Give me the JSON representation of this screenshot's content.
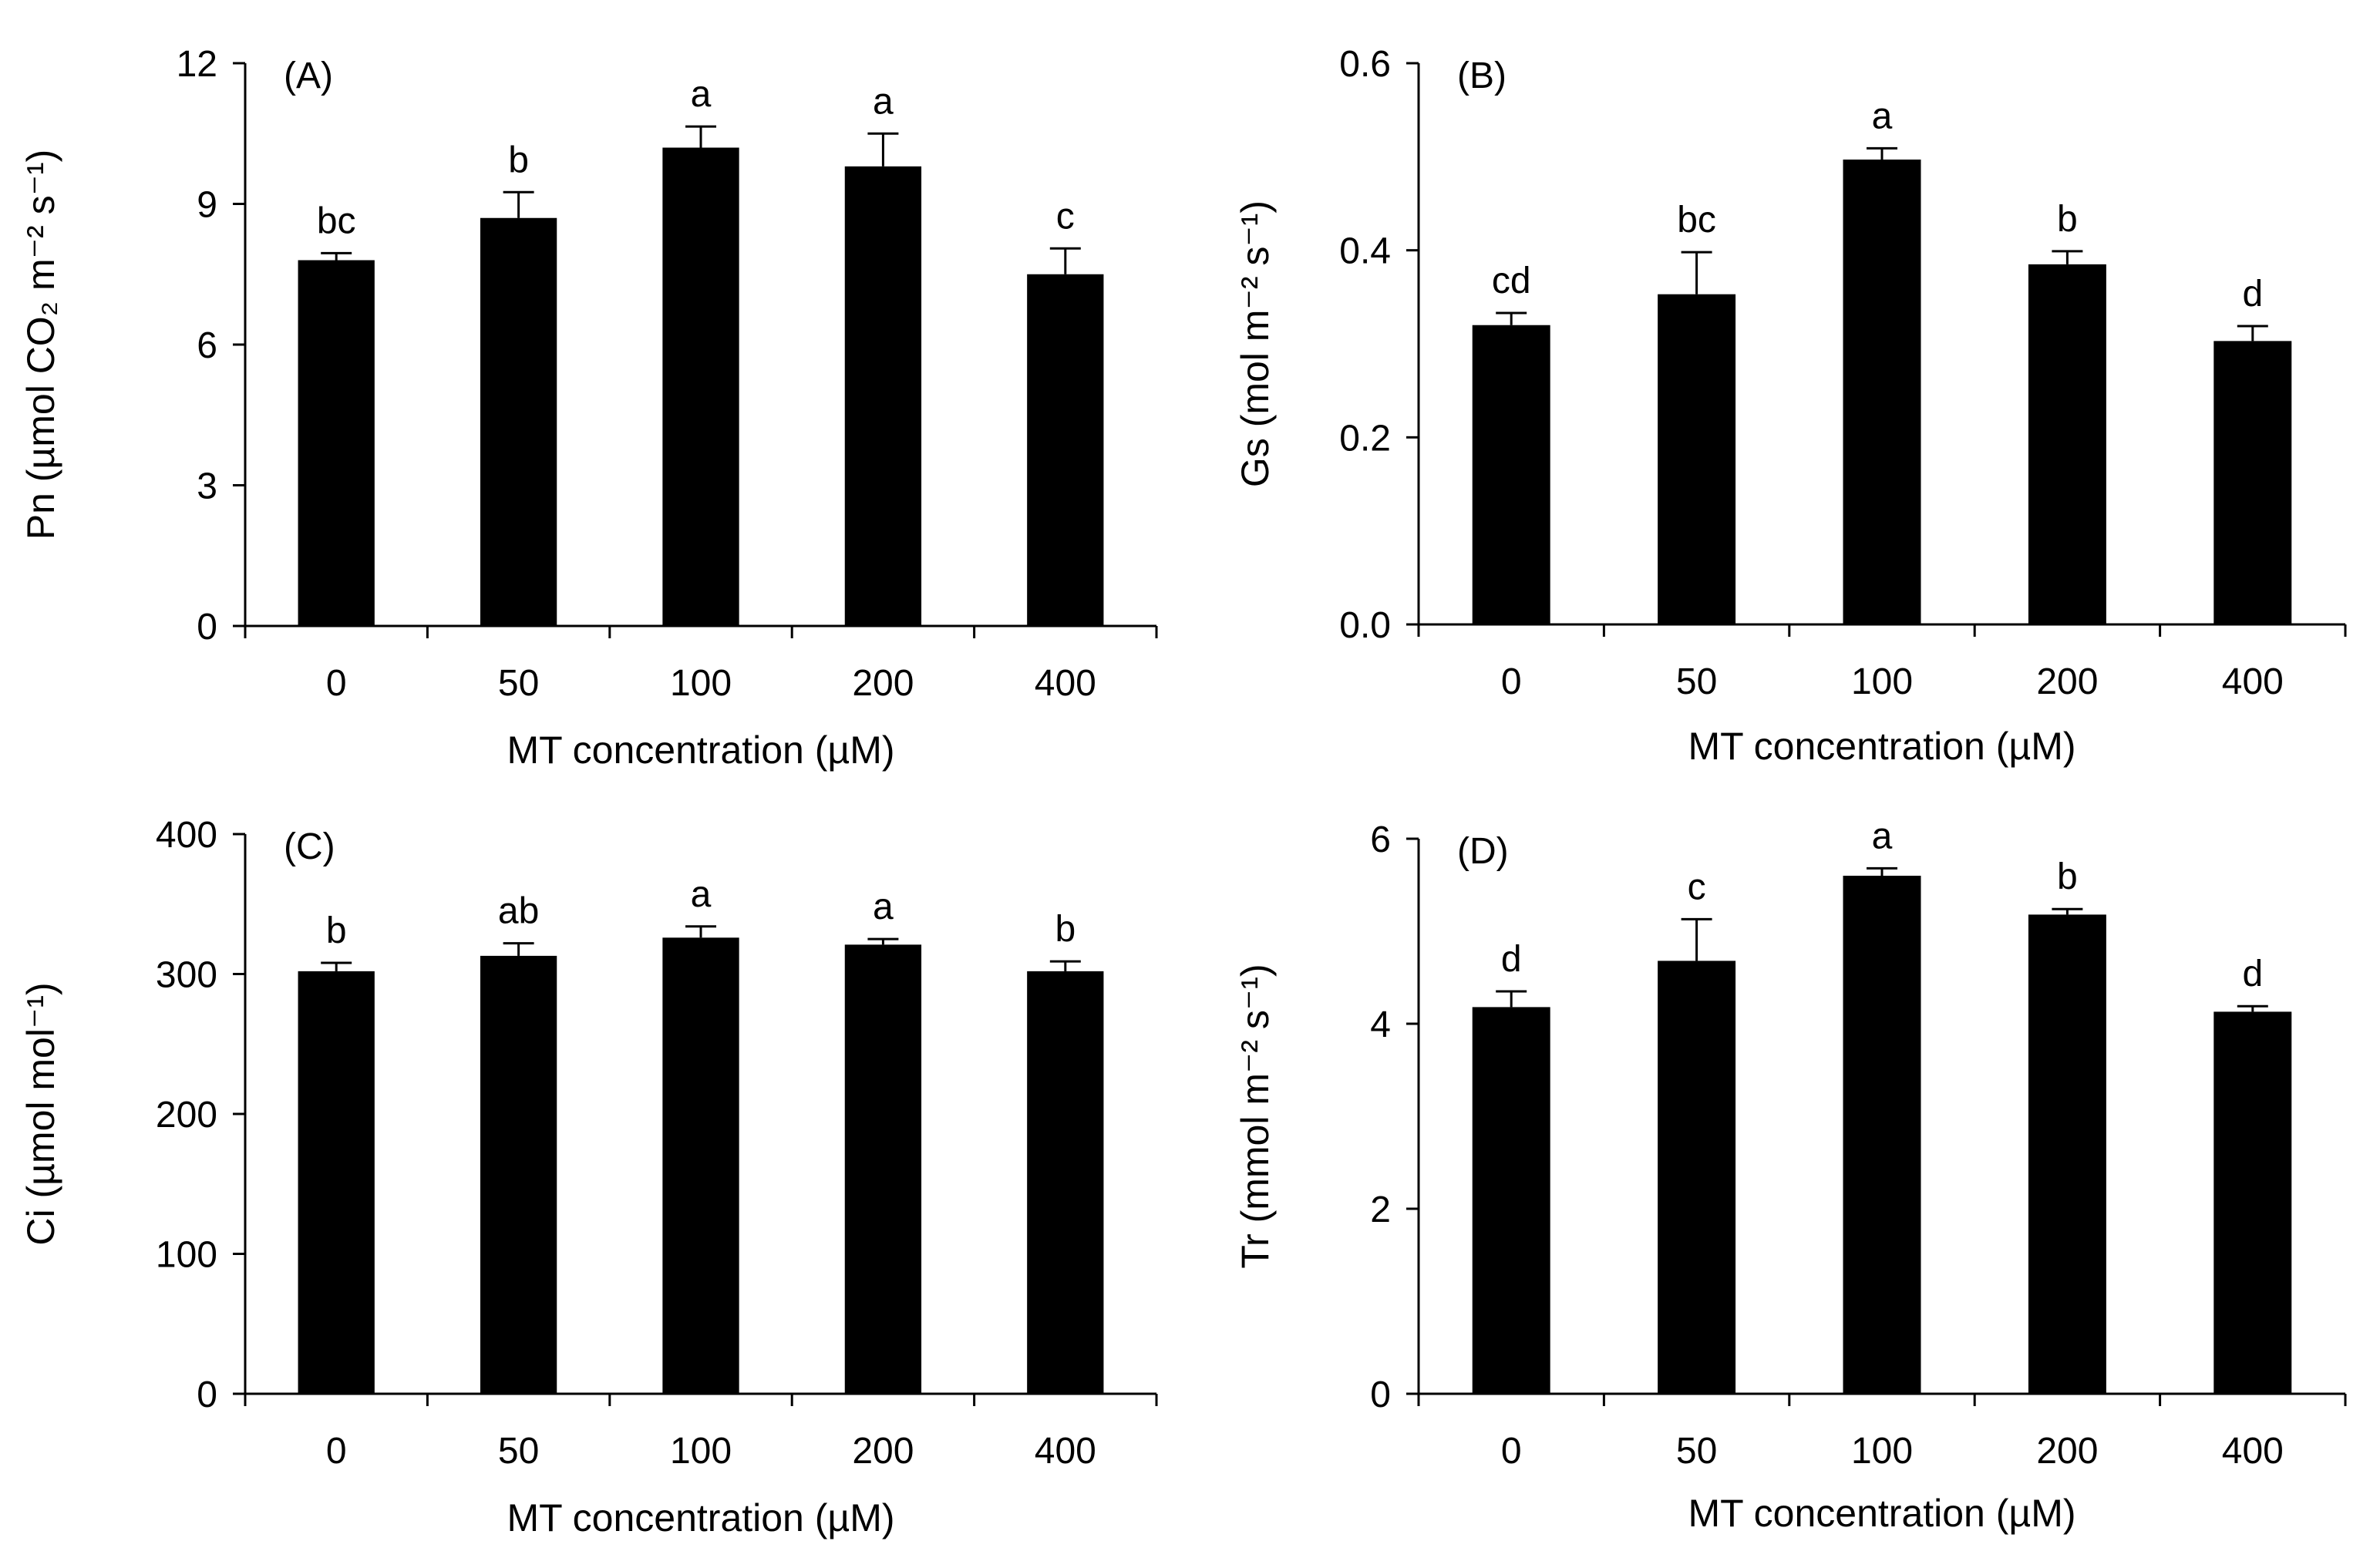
{
  "chart_data": [
    {
      "type": "bar",
      "panel": "(A)",
      "categories": [
        "0",
        "50",
        "100",
        "200",
        "400"
      ],
      "values": [
        7.8,
        8.7,
        10.2,
        9.8,
        7.5
      ],
      "errors": [
        0.15,
        0.55,
        0.45,
        0.7,
        0.55
      ],
      "significance": [
        "bc",
        "b",
        "a",
        "a",
        "c"
      ],
      "xlabel": "MT concentration (µM)",
      "ylabel": "Pn  (µmol CO₂ m⁻² s⁻¹)",
      "ylim": [
        0,
        12
      ],
      "yticks": [
        0,
        3,
        6,
        9,
        12
      ],
      "ytick_labels": [
        "0",
        "3",
        "6",
        "9",
        "12"
      ],
      "bar_color": "#000000"
    },
    {
      "type": "bar",
      "panel": "(B)",
      "categories": [
        "0",
        "50",
        "100",
        "200",
        "400"
      ],
      "values": [
        0.32,
        0.353,
        0.497,
        0.385,
        0.303
      ],
      "errors": [
        0.013,
        0.045,
        0.012,
        0.014,
        0.016
      ],
      "significance": [
        "cd",
        "bc",
        "a",
        "b",
        "d"
      ],
      "xlabel": "MT concentration (µM)",
      "ylabel": "Gs (mol m⁻² s⁻¹)",
      "ylim": [
        0,
        0.6
      ],
      "yticks": [
        0,
        0.2,
        0.4,
        0.6
      ],
      "ytick_labels": [
        "0.0",
        "0.2",
        "0.4",
        "0.6"
      ],
      "bar_color": "#000000"
    },
    {
      "type": "bar",
      "panel": "(C)",
      "categories": [
        "0",
        "50",
        "100",
        "200",
        "400"
      ],
      "values": [
        302,
        313,
        326,
        321,
        302
      ],
      "errors": [
        6,
        9,
        8,
        4,
        7
      ],
      "significance": [
        "b",
        "ab",
        "a",
        "a",
        "b"
      ],
      "xlabel": "MT concentration (µM)",
      "ylabel": "Ci  (µmol mol⁻¹)",
      "ylim": [
        0,
        400
      ],
      "yticks": [
        0,
        100,
        200,
        300,
        400
      ],
      "ytick_labels": [
        "0",
        "100",
        "200",
        "300",
        "400"
      ],
      "bar_color": "#000000"
    },
    {
      "type": "bar",
      "panel": "(D)",
      "categories": [
        "0",
        "50",
        "100",
        "200",
        "400"
      ],
      "values": [
        4.18,
        4.68,
        5.6,
        5.18,
        4.13
      ],
      "errors": [
        0.17,
        0.45,
        0.08,
        0.06,
        0.06
      ],
      "significance": [
        "d",
        "c",
        "a",
        "b",
        "d"
      ],
      "xlabel": "MT concentration (µM)",
      "ylabel": "Tr (mmol m⁻² s⁻¹)",
      "ylim": [
        0,
        6
      ],
      "yticks": [
        0,
        2,
        4,
        6
      ],
      "ytick_labels": [
        "0",
        "2",
        "4",
        "6"
      ],
      "bar_color": "#000000"
    }
  ]
}
